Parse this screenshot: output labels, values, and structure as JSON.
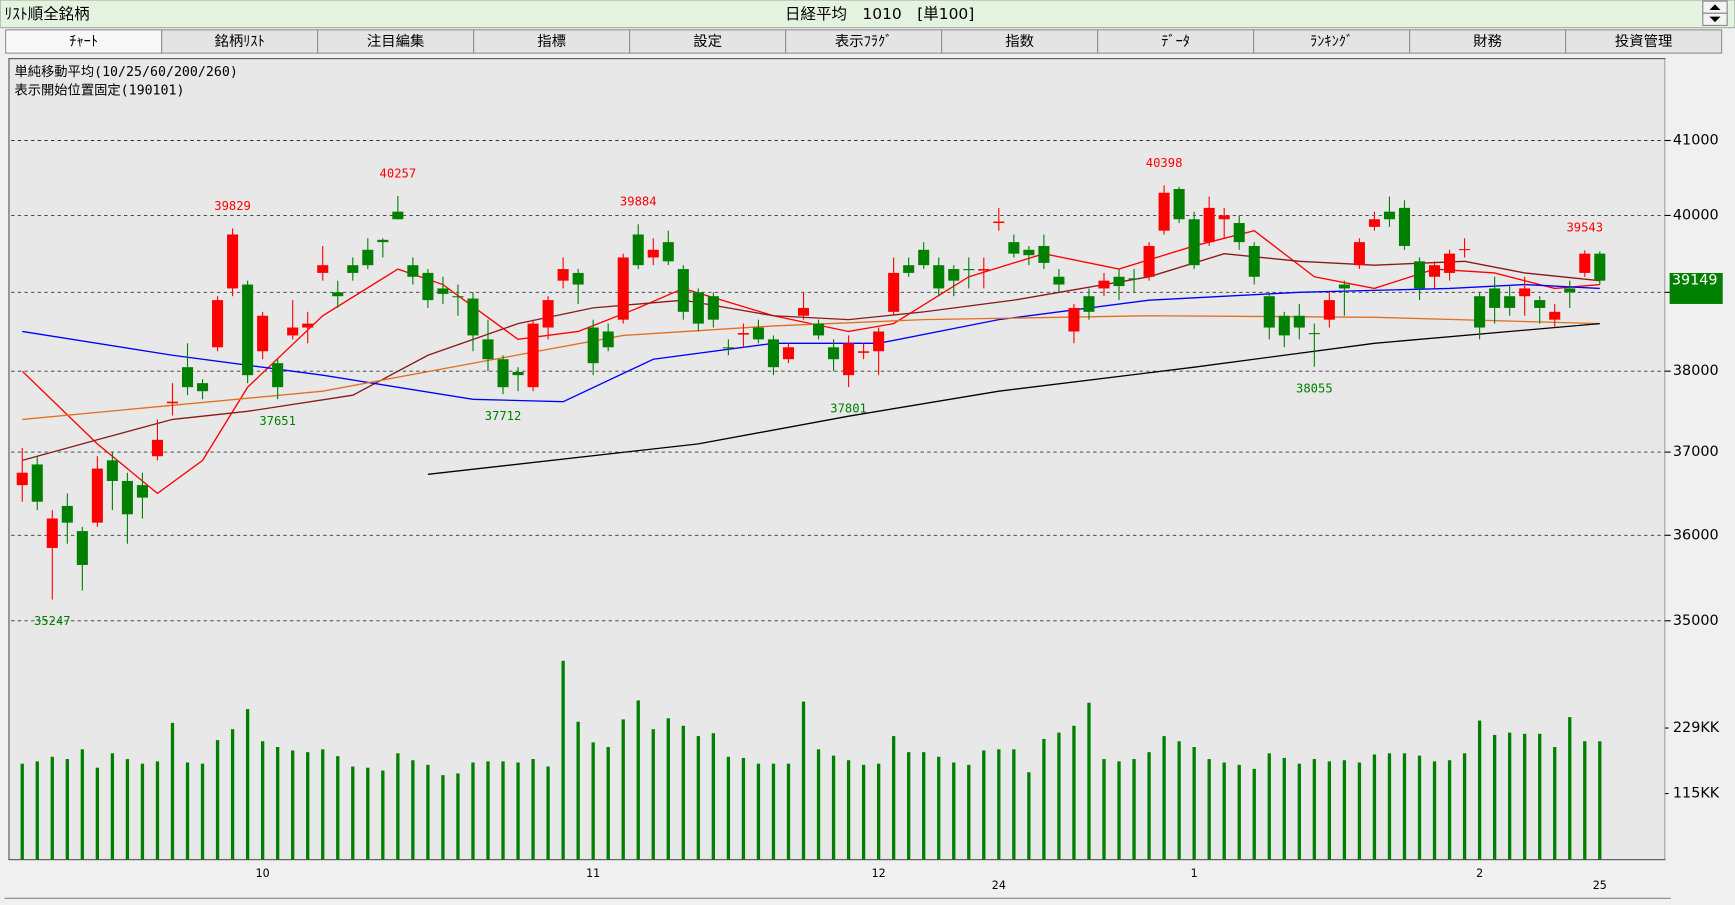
{
  "header": {
    "left": "ﾘｽﾄ順全銘柄",
    "center": "日経平均　1010　[単100]"
  },
  "tabs": [
    "ﾁｬｰﾄ",
    "銘柄ﾘｽﾄ",
    "注目編集",
    "指標",
    "設定",
    "表示ﾌﾗｸﾞ",
    "指数",
    "ﾃﾞｰﾀ",
    "ﾗﾝｷﾝｸﾞ",
    "財務",
    "投資管理"
  ],
  "chart_data": {
    "type": "candlestick",
    "info": [
      "単純移動平均(10/25/60/200/260)",
      "表示開始位置固定(190101)"
    ],
    "log_scale": true,
    "grid": true,
    "up_color": "#ff0000",
    "down_color": "#008000",
    "ylim": [
      34760,
      42090
    ],
    "yticks": [
      35000,
      36000,
      37000,
      38000,
      39000,
      40000,
      41000
    ],
    "month_ticks": [
      {
        "x": 16,
        "label": "10"
      },
      {
        "x": 38,
        "label": "11"
      },
      {
        "x": 57,
        "label": "12"
      },
      {
        "x": 78,
        "label": "1"
      },
      {
        "x": 97,
        "label": "2"
      }
    ],
    "year_ticks": [
      {
        "x": 65,
        "label": "24"
      },
      {
        "x": 105,
        "label": "25"
      }
    ],
    "open": [
      36600,
      36850,
      35850,
      36350,
      36050,
      36150,
      36900,
      36650,
      36600,
      36950,
      37600,
      38050,
      37850,
      38300,
      39050,
      39100,
      38250,
      38100,
      38450,
      38550,
      39250,
      39000,
      39350,
      39550,
      39680,
      40050,
      39350,
      39250,
      39050,
      38950,
      38920,
      38400,
      38150,
      37990,
      37800,
      38550,
      39150,
      39250,
      38550,
      38500,
      38650,
      39750,
      39450,
      39650,
      39300,
      39000,
      38950,
      38300,
      38460,
      38550,
      38400,
      38150,
      38700,
      38600,
      38300,
      37950,
      38230,
      38250,
      38750,
      39350,
      39550,
      39350,
      39300,
      39300,
      39280,
      39900,
      39650,
      39550,
      39600,
      39200,
      38500,
      38950,
      39050,
      39200,
      39180,
      39200,
      39800,
      40350,
      39950,
      39650,
      39950,
      39900,
      39600,
      38950,
      38700,
      38700,
      38480,
      38650,
      39100,
      39350,
      39850,
      40050,
      40100,
      39400,
      39200,
      39250,
      39550,
      38950,
      39050,
      38950,
      38950,
      38900,
      38650,
      39050,
      39250,
      39500
    ],
    "high": [
      37050,
      36950,
      36300,
      36500,
      36100,
      36950,
      37000,
      36750,
      36750,
      37400,
      37850,
      38350,
      37900,
      38950,
      39829,
      39150,
      38750,
      38150,
      38900,
      38750,
      39600,
      39150,
      39450,
      39700,
      39700,
      40257,
      39450,
      39300,
      39200,
      39100,
      39000,
      38650,
      38200,
      38050,
      38650,
      38950,
      39450,
      39300,
      38650,
      38600,
      39500,
      39884,
      39700,
      39800,
      39350,
      39050,
      39000,
      38400,
      38600,
      38650,
      38450,
      38350,
      39000,
      38650,
      38400,
      38450,
      38350,
      38550,
      39450,
      39450,
      39650,
      39450,
      39350,
      39450,
      39450,
      40100,
      39750,
      39600,
      39750,
      39300,
      38850,
      39050,
      39250,
      39300,
      39300,
      39650,
      40398,
      40380,
      40050,
      40250,
      40100,
      40000,
      39650,
      39000,
      38750,
      38850,
      38600,
      39000,
      39150,
      39700,
      40050,
      40250,
      40200,
      39450,
      39400,
      39550,
      39700,
      39000,
      39200,
      39100,
      39200,
      38950,
      38850,
      39150,
      39543,
      39530
    ],
    "low": [
      36400,
      36300,
      35247,
      35900,
      35350,
      36100,
      36300,
      35900,
      36200,
      36900,
      37450,
      37700,
      37650,
      38250,
      38950,
      37850,
      38150,
      37651,
      38400,
      38350,
      39150,
      38800,
      39150,
      39300,
      39450,
      39950,
      39100,
      38800,
      38850,
      38700,
      38250,
      38000,
      37712,
      37750,
      37750,
      38400,
      39050,
      38850,
      37950,
      38250,
      38600,
      39300,
      39350,
      39350,
      38650,
      38500,
      38550,
      38200,
      38300,
      38350,
      37950,
      38100,
      38650,
      38400,
      38000,
      37801,
      38150,
      37950,
      38700,
      39200,
      39300,
      38950,
      38950,
      39050,
      39050,
      39800,
      39450,
      39350,
      39300,
      39000,
      38350,
      38650,
      38950,
      38900,
      39000,
      39150,
      39750,
      39900,
      39300,
      39600,
      39700,
      39550,
      39100,
      38400,
      38300,
      38400,
      38055,
      38550,
      38700,
      39300,
      39800,
      39850,
      39550,
      38900,
      39050,
      39150,
      39450,
      38400,
      38600,
      38700,
      38700,
      38600,
      38550,
      38800,
      39200,
      39100
    ],
    "close": [
      36750,
      36400,
      36200,
      36150,
      35650,
      36800,
      36650,
      36250,
      36450,
      37150,
      37620,
      37800,
      37750,
      38900,
      39750,
      37950,
      38700,
      37800,
      38550,
      38600,
      39350,
      38950,
      39250,
      39350,
      39650,
      39950,
      39200,
      38900,
      38980,
      38940,
      38450,
      38150,
      37800,
      37950,
      38600,
      38900,
      39300,
      39100,
      38100,
      38300,
      39450,
      39350,
      39550,
      39400,
      38750,
      38600,
      38650,
      38290,
      38480,
      38400,
      38050,
      38300,
      38800,
      38450,
      38150,
      38350,
      38250,
      38500,
      39250,
      39250,
      39350,
      39050,
      39150,
      39290,
      39300,
      39920,
      39500,
      39480,
      39380,
      39100,
      38800,
      38750,
      39150,
      39080,
      39170,
      39600,
      40300,
      39950,
      39350,
      40100,
      40000,
      39650,
      39200,
      38550,
      38450,
      38550,
      38470,
      38900,
      39050,
      39650,
      39950,
      39950,
      39600,
      39050,
      39350,
      39500,
      39560,
      38550,
      38800,
      38800,
      39050,
      38800,
      38750,
      39000,
      39500,
      39150
    ],
    "labeled_highs": [
      14,
      25,
      41,
      76,
      104
    ],
    "labeled_lows": [
      2,
      17,
      32,
      55,
      86
    ],
    "current_price": 39149,
    "current_color": "#008000",
    "series": [
      {
        "color": "#ff0000",
        "x": [
          0,
          5,
          9,
          12,
          15,
          20,
          25,
          28,
          33,
          37,
          41,
          44,
          50,
          55,
          58,
          63,
          68,
          73,
          78,
          82,
          86,
          90,
          94,
          98,
          102,
          105
        ],
        "values": [
          38000,
          37100,
          36500,
          36900,
          37800,
          38700,
          39300,
          39100,
          38400,
          38500,
          38800,
          39050,
          38700,
          38500,
          38600,
          39200,
          39500,
          39300,
          39600,
          39800,
          39200,
          39050,
          39300,
          39250,
          39050,
          39100
        ]
      },
      {
        "color": "#8b1a1a",
        "x": [
          0,
          5,
          10,
          15,
          22,
          27,
          33,
          38,
          44,
          50,
          55,
          60,
          66,
          75,
          80,
          85,
          90,
          96,
          100,
          105
        ],
        "values": [
          36900,
          37150,
          37400,
          37500,
          37700,
          38200,
          38600,
          38800,
          38900,
          38700,
          38650,
          38750,
          38900,
          39200,
          39500,
          39400,
          39350,
          39400,
          39250,
          39150
        ]
      },
      {
        "color": "#0000ff",
        "x": [
          0,
          10,
          20,
          30,
          36,
          42,
          50,
          57,
          65,
          75,
          85,
          95,
          100,
          105
        ],
        "values": [
          38500,
          38200,
          37950,
          37650,
          37620,
          38150,
          38350,
          38350,
          38650,
          38900,
          39000,
          39050,
          39100,
          39050
        ]
      },
      {
        "color": "#e07020",
        "x": [
          0,
          20,
          30,
          40,
          50,
          60,
          75,
          90,
          105
        ],
        "values": [
          37400,
          37750,
          38100,
          38450,
          38570,
          38650,
          38700,
          38680,
          38600
        ]
      },
      {
        "color": "#000000",
        "x": [
          27,
          45,
          55,
          65,
          78,
          90,
          105
        ],
        "values": [
          36730,
          37100,
          37440,
          37750,
          38050,
          38350,
          38600
        ]
      }
    ],
    "volume": {
      "color": "#008000",
      "ylim": [
        0,
        360
      ],
      "yticks": [
        {
          "value": 229,
          "label": "229KK"
        },
        {
          "value": 115,
          "label": "115KK"
        }
      ],
      "values": [
        167,
        171,
        179,
        175,
        192,
        160,
        185,
        175,
        167,
        171,
        238,
        169,
        167,
        208,
        227,
        262,
        206,
        196,
        190,
        187,
        192,
        180,
        162,
        160,
        155,
        185,
        173,
        165,
        147,
        150,
        169,
        171,
        171,
        169,
        175,
        162,
        346,
        240,
        204,
        196,
        244,
        277,
        227,
        246,
        233,
        215,
        220,
        179,
        177,
        167,
        167,
        167,
        275,
        192,
        181,
        173,
        165,
        167,
        215,
        187,
        187,
        179,
        169,
        165,
        190,
        192,
        192,
        152,
        210,
        221,
        233,
        273,
        175,
        171,
        175,
        187,
        215,
        206,
        196,
        175,
        169,
        165,
        158,
        185,
        177,
        167,
        175,
        171,
        173,
        169,
        183,
        185,
        185,
        181,
        171,
        173,
        185,
        242,
        217,
        221,
        219,
        219,
        196,
        248,
        206,
        206
      ]
    }
  }
}
